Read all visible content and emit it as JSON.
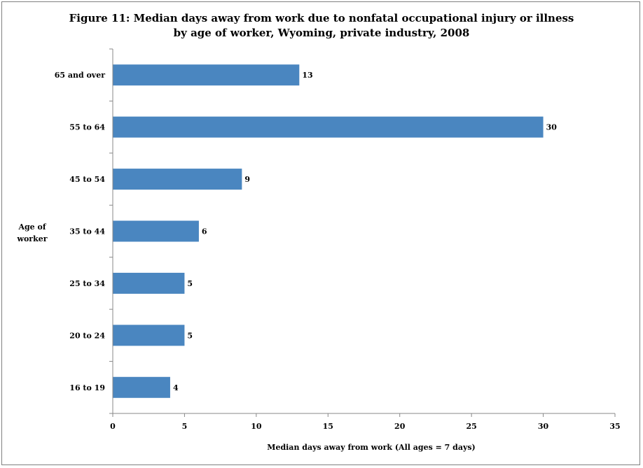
{
  "chart_data": {
    "type": "bar",
    "orientation": "horizontal",
    "title_line1": "Figure 11: Median days away from work due to nonfatal occupational injury or illness",
    "title_line2": "by age of worker, Wyoming, private industry, 2008",
    "ylabel_line1": "Age of",
    "ylabel_line2": "worker",
    "xlabel": "Median days away from work (All ages = 7 days)",
    "categories": [
      "16 to 19",
      "20 to 24",
      "25 to 34",
      "35 to 44",
      "45 to 54",
      "55 to 64",
      "65 and over"
    ],
    "values": [
      4,
      5,
      5,
      6,
      9,
      30,
      13
    ],
    "xlim": [
      0,
      35
    ],
    "xticks": [
      0,
      5,
      10,
      15,
      20,
      25,
      30,
      35
    ],
    "bar_color": "#4a86c0",
    "grid": false,
    "legend": "none",
    "data_labels": true
  }
}
